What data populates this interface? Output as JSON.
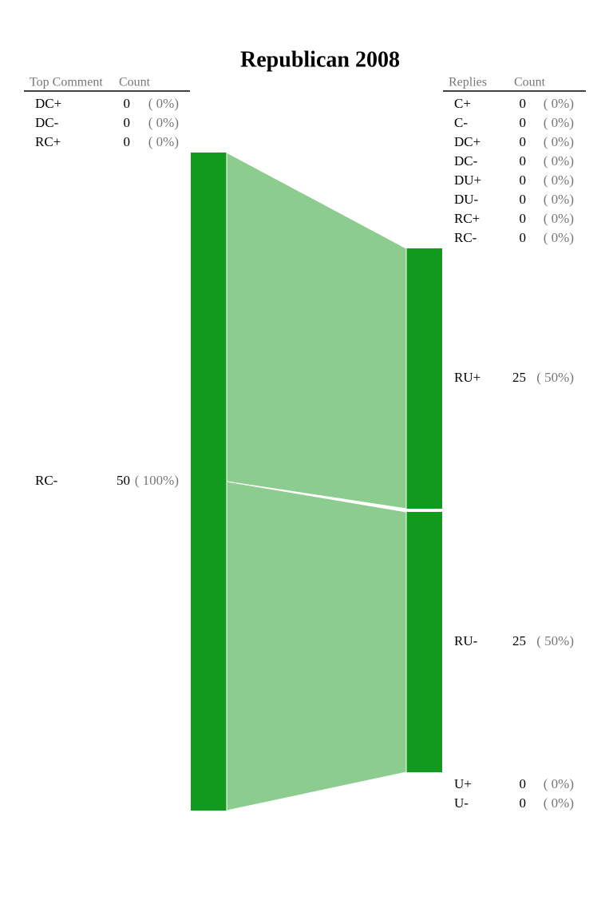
{
  "chart_data": {
    "type": "sankey",
    "title": "Republican 2008",
    "node_color": "#119a1d",
    "link_color": "#8ccc8e",
    "left": {
      "headers": [
        "Top Comment",
        "Count"
      ],
      "nodes": [
        {
          "name": "DC+",
          "value": 0,
          "label": "( 0%)"
        },
        {
          "name": "DC-",
          "value": 0,
          "label": "( 0%)"
        },
        {
          "name": "RC+",
          "value": 0,
          "label": "( 0%)"
        },
        {
          "name": "RC-",
          "value": 50,
          "label": "( 100%)"
        }
      ]
    },
    "right": {
      "headers": [
        "Replies",
        "Count"
      ],
      "nodes": [
        {
          "name": "C+",
          "value": 0,
          "label": "( 0%)"
        },
        {
          "name": "C-",
          "value": 0,
          "label": "( 0%)"
        },
        {
          "name": "DC+",
          "value": 0,
          "label": "( 0%)"
        },
        {
          "name": "DC-",
          "value": 0,
          "label": "( 0%)"
        },
        {
          "name": "DU+",
          "value": 0,
          "label": "( 0%)"
        },
        {
          "name": "DU-",
          "value": 0,
          "label": "( 0%)"
        },
        {
          "name": "RC+",
          "value": 0,
          "label": "( 0%)"
        },
        {
          "name": "RC-",
          "value": 0,
          "label": "( 0%)"
        },
        {
          "name": "RU+",
          "value": 25,
          "label": "( 50%)"
        },
        {
          "name": "RU-",
          "value": 25,
          "label": "( 50%)"
        },
        {
          "name": "U+",
          "value": 0,
          "label": "( 0%)"
        },
        {
          "name": "U-",
          "value": 0,
          "label": "( 0%)"
        }
      ]
    },
    "links": [
      {
        "source": "RC-",
        "target": "RU+",
        "value": 25
      },
      {
        "source": "RC-",
        "target": "RU-",
        "value": 25
      }
    ]
  }
}
